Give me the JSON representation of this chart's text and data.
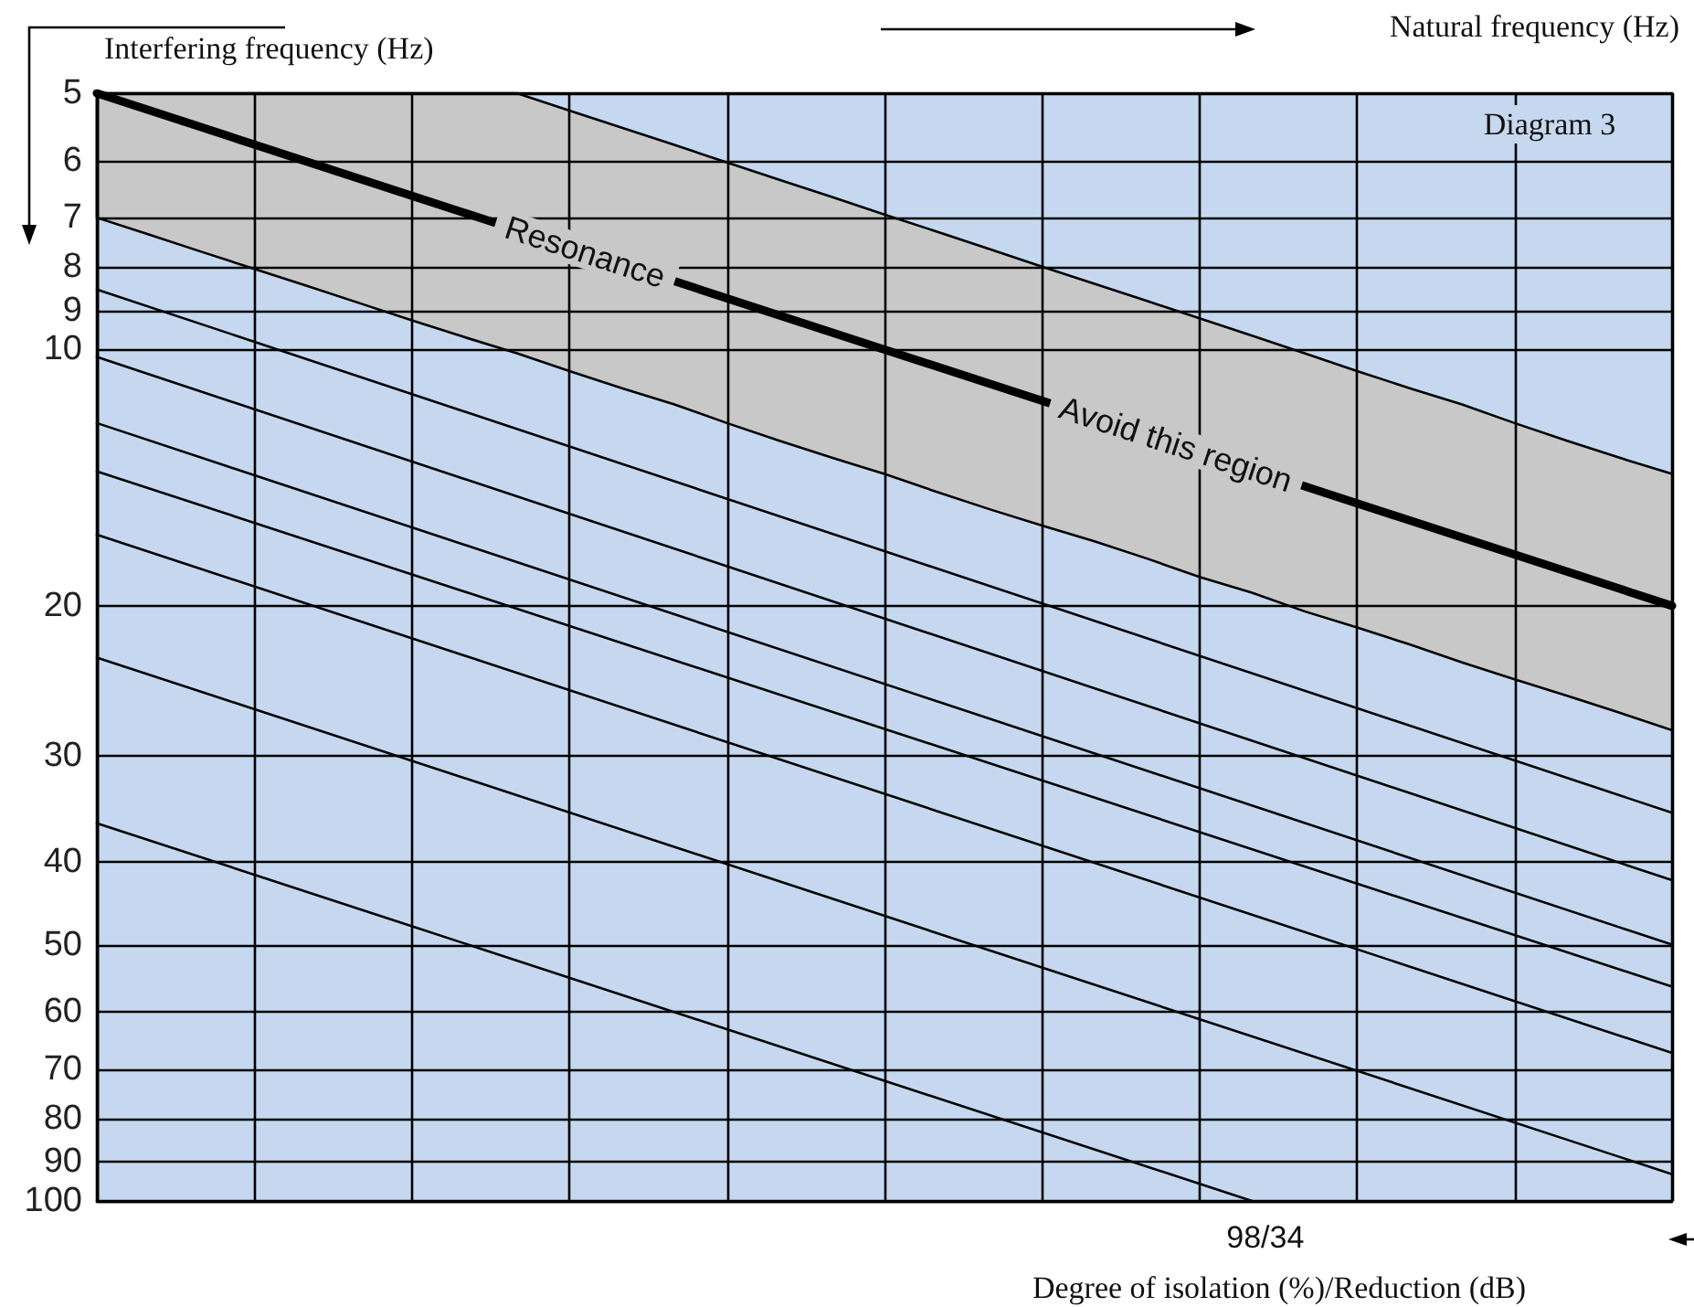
{
  "chart_data": {
    "type": "line",
    "title": null,
    "xlabel": "Natural frequency (Hz)",
    "ylabel": "Interfering frequency (Hz)",
    "annotations": [
      "Diagram 3",
      "Resonance",
      "Avoid this region",
      "Degree of isolation (%)/Reduction (dB)"
    ],
    "categories": [
      null,
      null,
      null,
      null,
      null,
      null,
      null,
      null,
      null,
      null,
      null,
      null,
      null,
      null,
      null,
      null,
      null,
      null,
      null,
      null,
      null,
      null,
      null,
      null,
      null,
      null,
      null,
      null,
      null,
      null,
      null
    ],
    "series": [
      {
        "color": "#000000",
        "values": [
          5,
          null,
          null,
          null,
          null,
          null,
          null,
          null,
          null,
          null,
          null,
          null,
          null,
          null,
          null,
          null,
          null,
          null,
          null,
          null,
          null,
          null,
          null,
          null,
          null,
          null,
          null,
          null,
          null,
          null,
          20
        ],
        "upper": [
          5,
          5,
          5,
          5,
          5,
          5,
          5,
          5,
          5,
          5.24,
          5.49,
          5.75,
          6.03,
          6.32,
          6.62,
          6.94,
          7.27,
          7.62,
          7.99,
          8.37,
          8.77,
          9.19,
          9.63,
          10.1,
          10.6,
          11.1,
          11.6,
          12.2,
          12.8,
          13.4,
          14
        ],
        "lower": [
          7,
          7.33,
          7.68,
          8.04,
          8.42,
          8.82,
          9.24,
          9.67,
          10.1,
          10.6,
          11.1,
          11.6,
          12.2,
          12.8,
          13.4,
          14,
          14.7,
          15.4,
          16.1,
          16.8,
          17.6,
          18.5,
          19.3,
          20.3,
          21.2,
          22.2,
          23.3,
          24.4,
          25.5,
          26.7,
          28
        ]
      },
      {
        "color": "#000000",
        "values": [
          8.5,
          null,
          null,
          null,
          null,
          null,
          null,
          null,
          null,
          null,
          null,
          null,
          null,
          null,
          null,
          null,
          null,
          null,
          null,
          null,
          null,
          null,
          null,
          null,
          null,
          null,
          null,
          null,
          null,
          null,
          35
        ]
      },
      {
        "color": "#000000",
        "values": [
          10.2,
          null,
          null,
          null,
          null,
          null,
          null,
          null,
          null,
          null,
          null,
          null,
          null,
          null,
          null,
          null,
          null,
          null,
          null,
          null,
          null,
          null,
          null,
          null,
          null,
          null,
          null,
          null,
          null,
          null,
          42
        ]
      },
      {
        "color": "#000000",
        "values": [
          12.2,
          null,
          null,
          null,
          null,
          null,
          null,
          null,
          null,
          null,
          null,
          null,
          null,
          null,
          null,
          null,
          null,
          null,
          null,
          null,
          null,
          null,
          null,
          null,
          null,
          null,
          null,
          null,
          null,
          null,
          50
        ]
      },
      {
        "color": "#000000",
        "values": [
          13.9,
          null,
          null,
          null,
          null,
          null,
          null,
          null,
          null,
          null,
          null,
          null,
          null,
          null,
          null,
          null,
          null,
          null,
          null,
          null,
          null,
          null,
          null,
          null,
          null,
          null,
          null,
          null,
          null,
          null,
          56
        ]
      },
      {
        "color": "#000000",
        "values": [
          16.5,
          null,
          null,
          null,
          null,
          null,
          null,
          null,
          null,
          null,
          null,
          null,
          null,
          null,
          null,
          null,
          null,
          null,
          null,
          null,
          null,
          null,
          null,
          null,
          null,
          null,
          null,
          null,
          null,
          null,
          67
        ]
      },
      {
        "color": "#000000",
        "values": [
          23,
          null,
          null,
          null,
          null,
          null,
          null,
          null,
          null,
          null,
          null,
          null,
          null,
          null,
          null,
          null,
          null,
          null,
          null,
          null,
          null,
          null,
          null,
          null,
          null,
          null,
          null,
          null,
          null,
          null,
          93
        ]
      },
      {
        "name": "98/34",
        "color": "#000000",
        "values": [
          36,
          null,
          null,
          null,
          null,
          null,
          null,
          null,
          null,
          null,
          null,
          null,
          null,
          null,
          null,
          null,
          null,
          null,
          null,
          null,
          null,
          null,
          100,
          null,
          null,
          null,
          null,
          null,
          null,
          null,
          null
        ]
      }
    ],
    "ylim": [
      100,
      5
    ],
    "yticks": [
      5,
      6,
      7,
      8,
      9,
      10,
      20,
      30,
      40,
      50,
      60,
      70,
      80,
      90,
      100
    ],
    "log": "y",
    "grid": true,
    "legend": false,
    "tick_labels": "y",
    "marker": "none",
    "line_style": "solid"
  }
}
